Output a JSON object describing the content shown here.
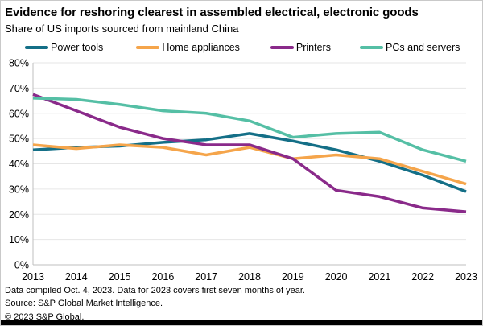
{
  "header": {
    "title": "Evidence for reshoring clearest in assembled electrical, electronic goods",
    "subtitle": "Share of US imports sourced from mainland China"
  },
  "chart_data": {
    "type": "line",
    "title": "Evidence for reshoring clearest in assembled electrical, electronic goods",
    "subtitle": "Share of US imports sourced from mainland China",
    "x": [
      2013,
      2014,
      2015,
      2016,
      2017,
      2018,
      2019,
      2020,
      2021,
      2022,
      2023
    ],
    "series": [
      {
        "name": "Power tools",
        "color": "#146F87",
        "values": [
          45.5,
          46.5,
          47,
          48.5,
          49.5,
          52,
          49,
          45.5,
          41,
          35.5,
          29
        ]
      },
      {
        "name": "Home appliances",
        "color": "#F5A54B",
        "values": [
          47.5,
          46,
          47.5,
          46.5,
          43.5,
          46.5,
          42,
          43.5,
          42,
          37,
          32
        ]
      },
      {
        "name": "Printers",
        "color": "#8A2A8A",
        "values": [
          67.5,
          61,
          54.5,
          50,
          47.5,
          47.5,
          42,
          29.5,
          27,
          22.5,
          21
        ]
      },
      {
        "name": "PCs and servers",
        "color": "#55BFA5",
        "values": [
          66,
          65.5,
          63.5,
          61,
          60,
          57,
          50.5,
          52,
          52.5,
          45.5,
          41
        ]
      }
    ],
    "ylim": [
      0,
      80
    ],
    "ytick_step": 10,
    "ytick_suffix": "%",
    "xlabel": "",
    "ylabel": "",
    "grid": "horizontal",
    "legend_position": "top"
  },
  "footer": {
    "line1": "Data compiled Oct. 4, 2023. Data for 2023 covers first seven months of year.",
    "line2": "Source: S&P Global Market Intelligence.",
    "line3": "© 2023 S&P Global."
  }
}
